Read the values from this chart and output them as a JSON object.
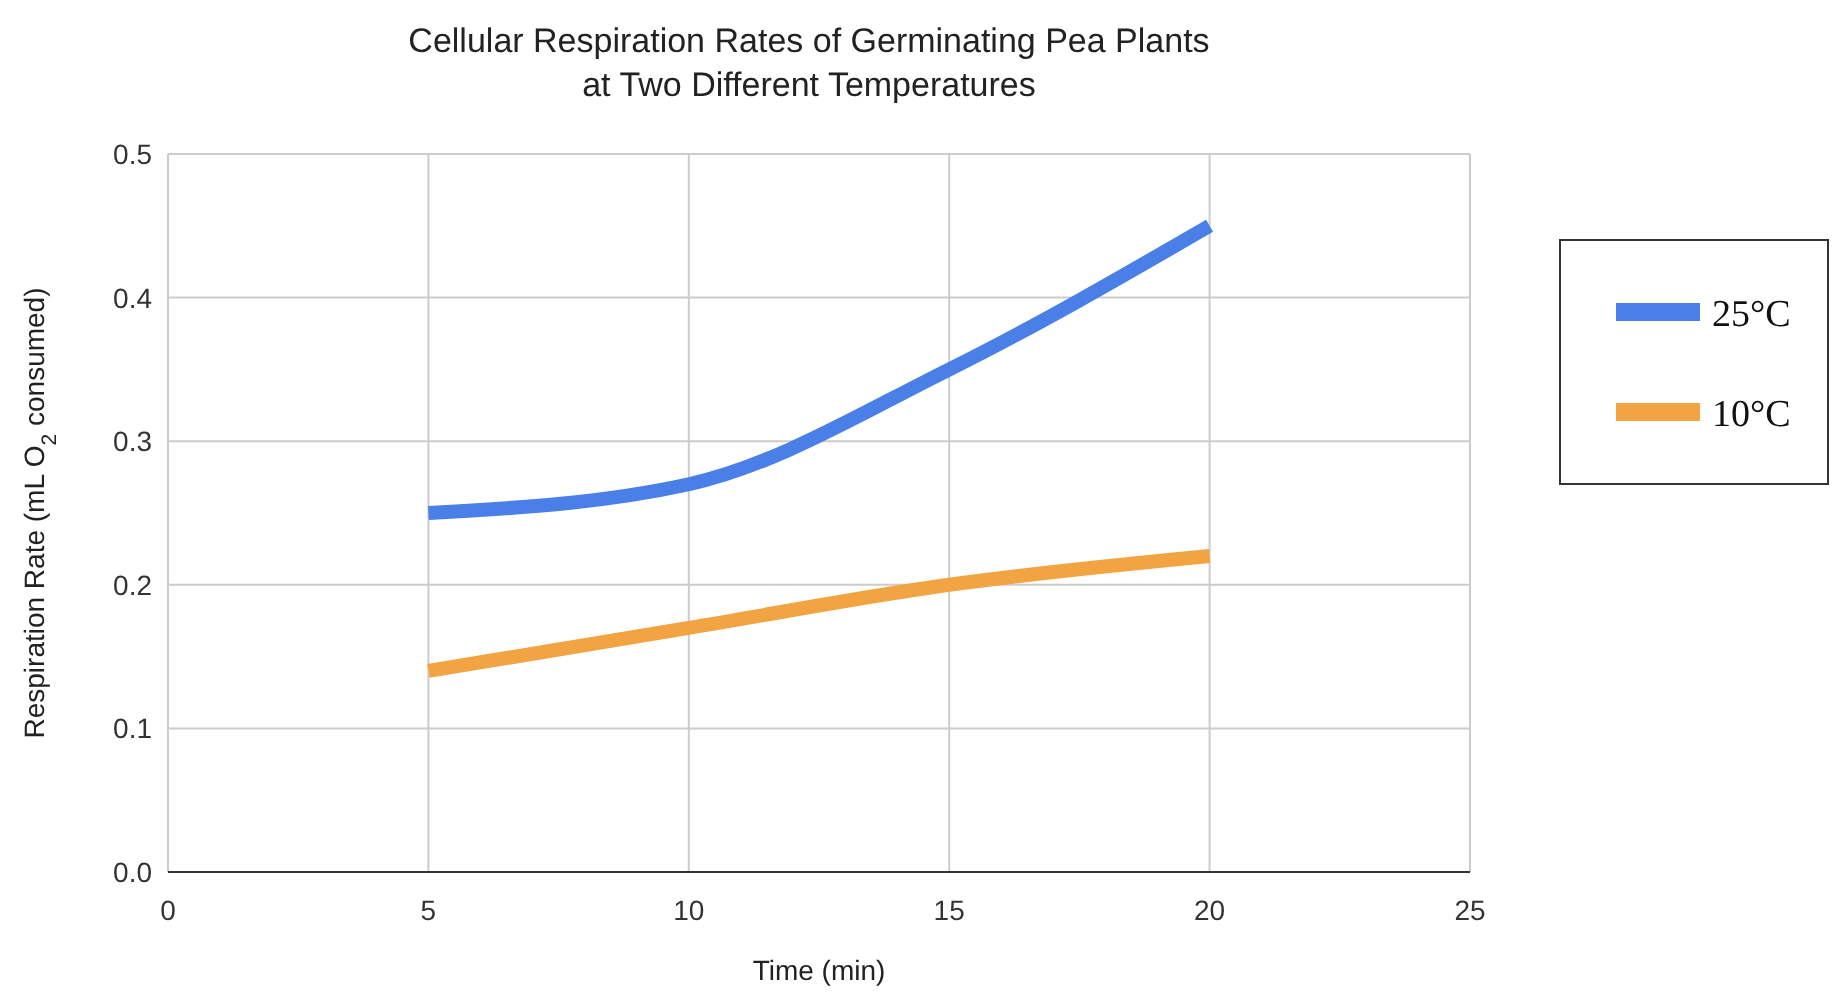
{
  "chart_data": {
    "type": "line",
    "title": "Cellular Respiration Rates of Germinating Pea Plants\nat Two Different Temperatures",
    "xlabel": "Time (min)",
    "ylabel": "Respiration Rate  (mL O$_{2}$ consumed)",
    "x": [
      5,
      10,
      15,
      20
    ],
    "series": [
      {
        "name": "25°C",
        "color": "#4a7fe8",
        "values": [
          0.25,
          0.27,
          0.35,
          0.45
        ]
      },
      {
        "name": "10°C",
        "color": "#f2a442",
        "values": [
          0.14,
          0.17,
          0.2,
          0.22
        ]
      }
    ],
    "xlim": [
      0,
      25
    ],
    "xticks": [
      0,
      5,
      10,
      15,
      20,
      25
    ],
    "ylim": [
      0,
      0.5
    ],
    "yticks": [
      {
        "value": 0,
        "label": "0.0"
      },
      {
        "value": 0.1,
        "label": "0.1"
      },
      {
        "value": 0.2,
        "label": "0.2"
      },
      {
        "value": 0.3,
        "label": "0.3"
      },
      {
        "value": 0.4,
        "label": "0.4"
      },
      {
        "value": 0.5,
        "label": "0.5"
      }
    ],
    "grid": true,
    "legend": "right",
    "marker": "none",
    "line_style": "solid"
  }
}
